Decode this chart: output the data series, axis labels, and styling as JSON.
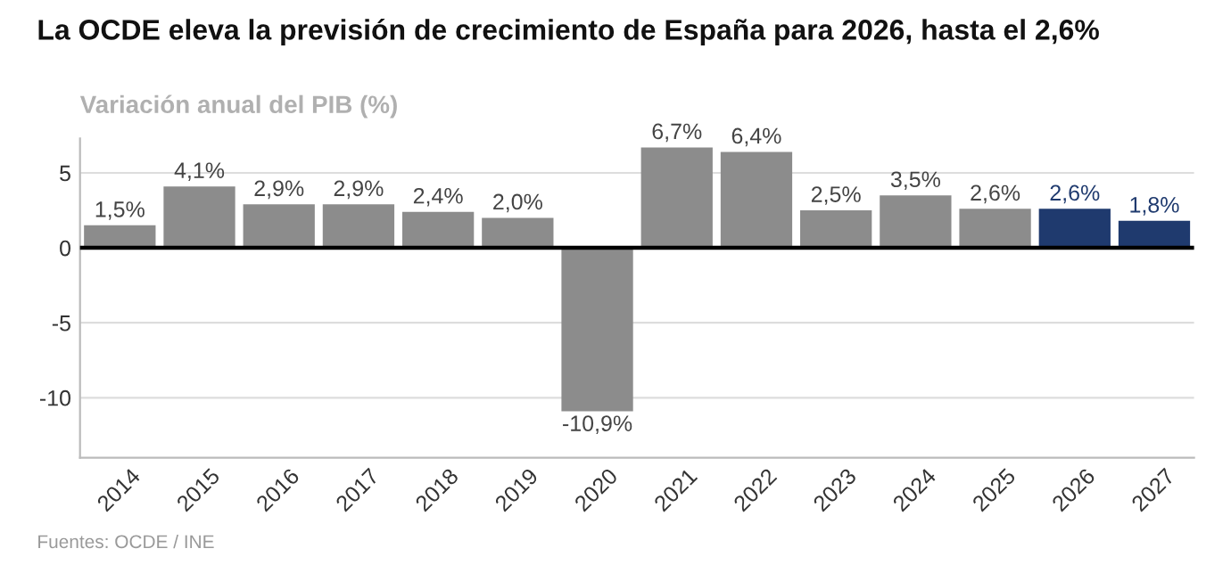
{
  "chart_data": {
    "type": "bar",
    "title": "La OCDE eleva la previsión de crecimiento de España para 2026, hasta el 2,6%",
    "subtitle": "Variación anual del PIB (%)",
    "categories": [
      "2014",
      "2015",
      "2016",
      "2017",
      "2018",
      "2019",
      "2020",
      "2021",
      "2022",
      "2023",
      "2024",
      "2025",
      "2026",
      "2027"
    ],
    "values": [
      1.5,
      4.1,
      2.9,
      2.9,
      2.4,
      2.0,
      -10.9,
      6.7,
      6.4,
      2.5,
      3.5,
      2.6,
      2.6,
      1.8
    ],
    "colors": [
      "#8c8c8c",
      "#8c8c8c",
      "#8c8c8c",
      "#8c8c8c",
      "#8c8c8c",
      "#8c8c8c",
      "#8c8c8c",
      "#8c8c8c",
      "#8c8c8c",
      "#8c8c8c",
      "#8c8c8c",
      "#8c8c8c",
      "#1f3a6e",
      "#1f3a6e"
    ],
    "value_labels": [
      "1,5%",
      "4,1%",
      "2,9%",
      "2,9%",
      "2,4%",
      "2,0%",
      "-10,9%",
      "6,7%",
      "6,4%",
      "2,5%",
      "3,5%",
      "2,6%",
      "2,6%",
      "1,8%"
    ],
    "ylim": [
      -14,
      7.3
    ],
    "yticks": [
      -10,
      -5,
      0,
      5
    ],
    "grid": "y",
    "ref_lines": [
      {
        "axis": "y",
        "value": 0,
        "color": "#000000"
      }
    ],
    "annotations": [
      "Fuentes: OCDE / INE"
    ]
  }
}
